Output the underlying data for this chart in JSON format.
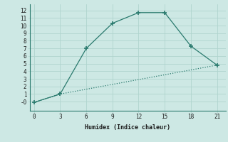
{
  "xlabel": "Humidex (Indice chaleur)",
  "line1_x": [
    0,
    3,
    6,
    9,
    12,
    15,
    18,
    21
  ],
  "line1_y": [
    -0.1,
    1.0,
    7.0,
    10.3,
    11.7,
    11.7,
    7.3,
    4.8
  ],
  "line2_x": [
    0,
    3,
    21
  ],
  "line2_y": [
    -0.1,
    1.0,
    4.8
  ],
  "line_color": "#2a7a6e",
  "bg_color": "#cde8e4",
  "grid_color": "#b0d4ce",
  "xlim": [
    -0.5,
    22
  ],
  "ylim": [
    -1.2,
    12.8
  ],
  "xticks": [
    0,
    3,
    6,
    9,
    12,
    15,
    18,
    21
  ],
  "yticks": [
    0,
    1,
    2,
    3,
    4,
    5,
    6,
    7,
    8,
    9,
    10,
    11,
    12
  ],
  "ytick_labels": [
    "-0",
    "1",
    "2",
    "3",
    "4",
    "5",
    "6",
    "7",
    "8",
    "9",
    "10",
    "11",
    "12"
  ]
}
